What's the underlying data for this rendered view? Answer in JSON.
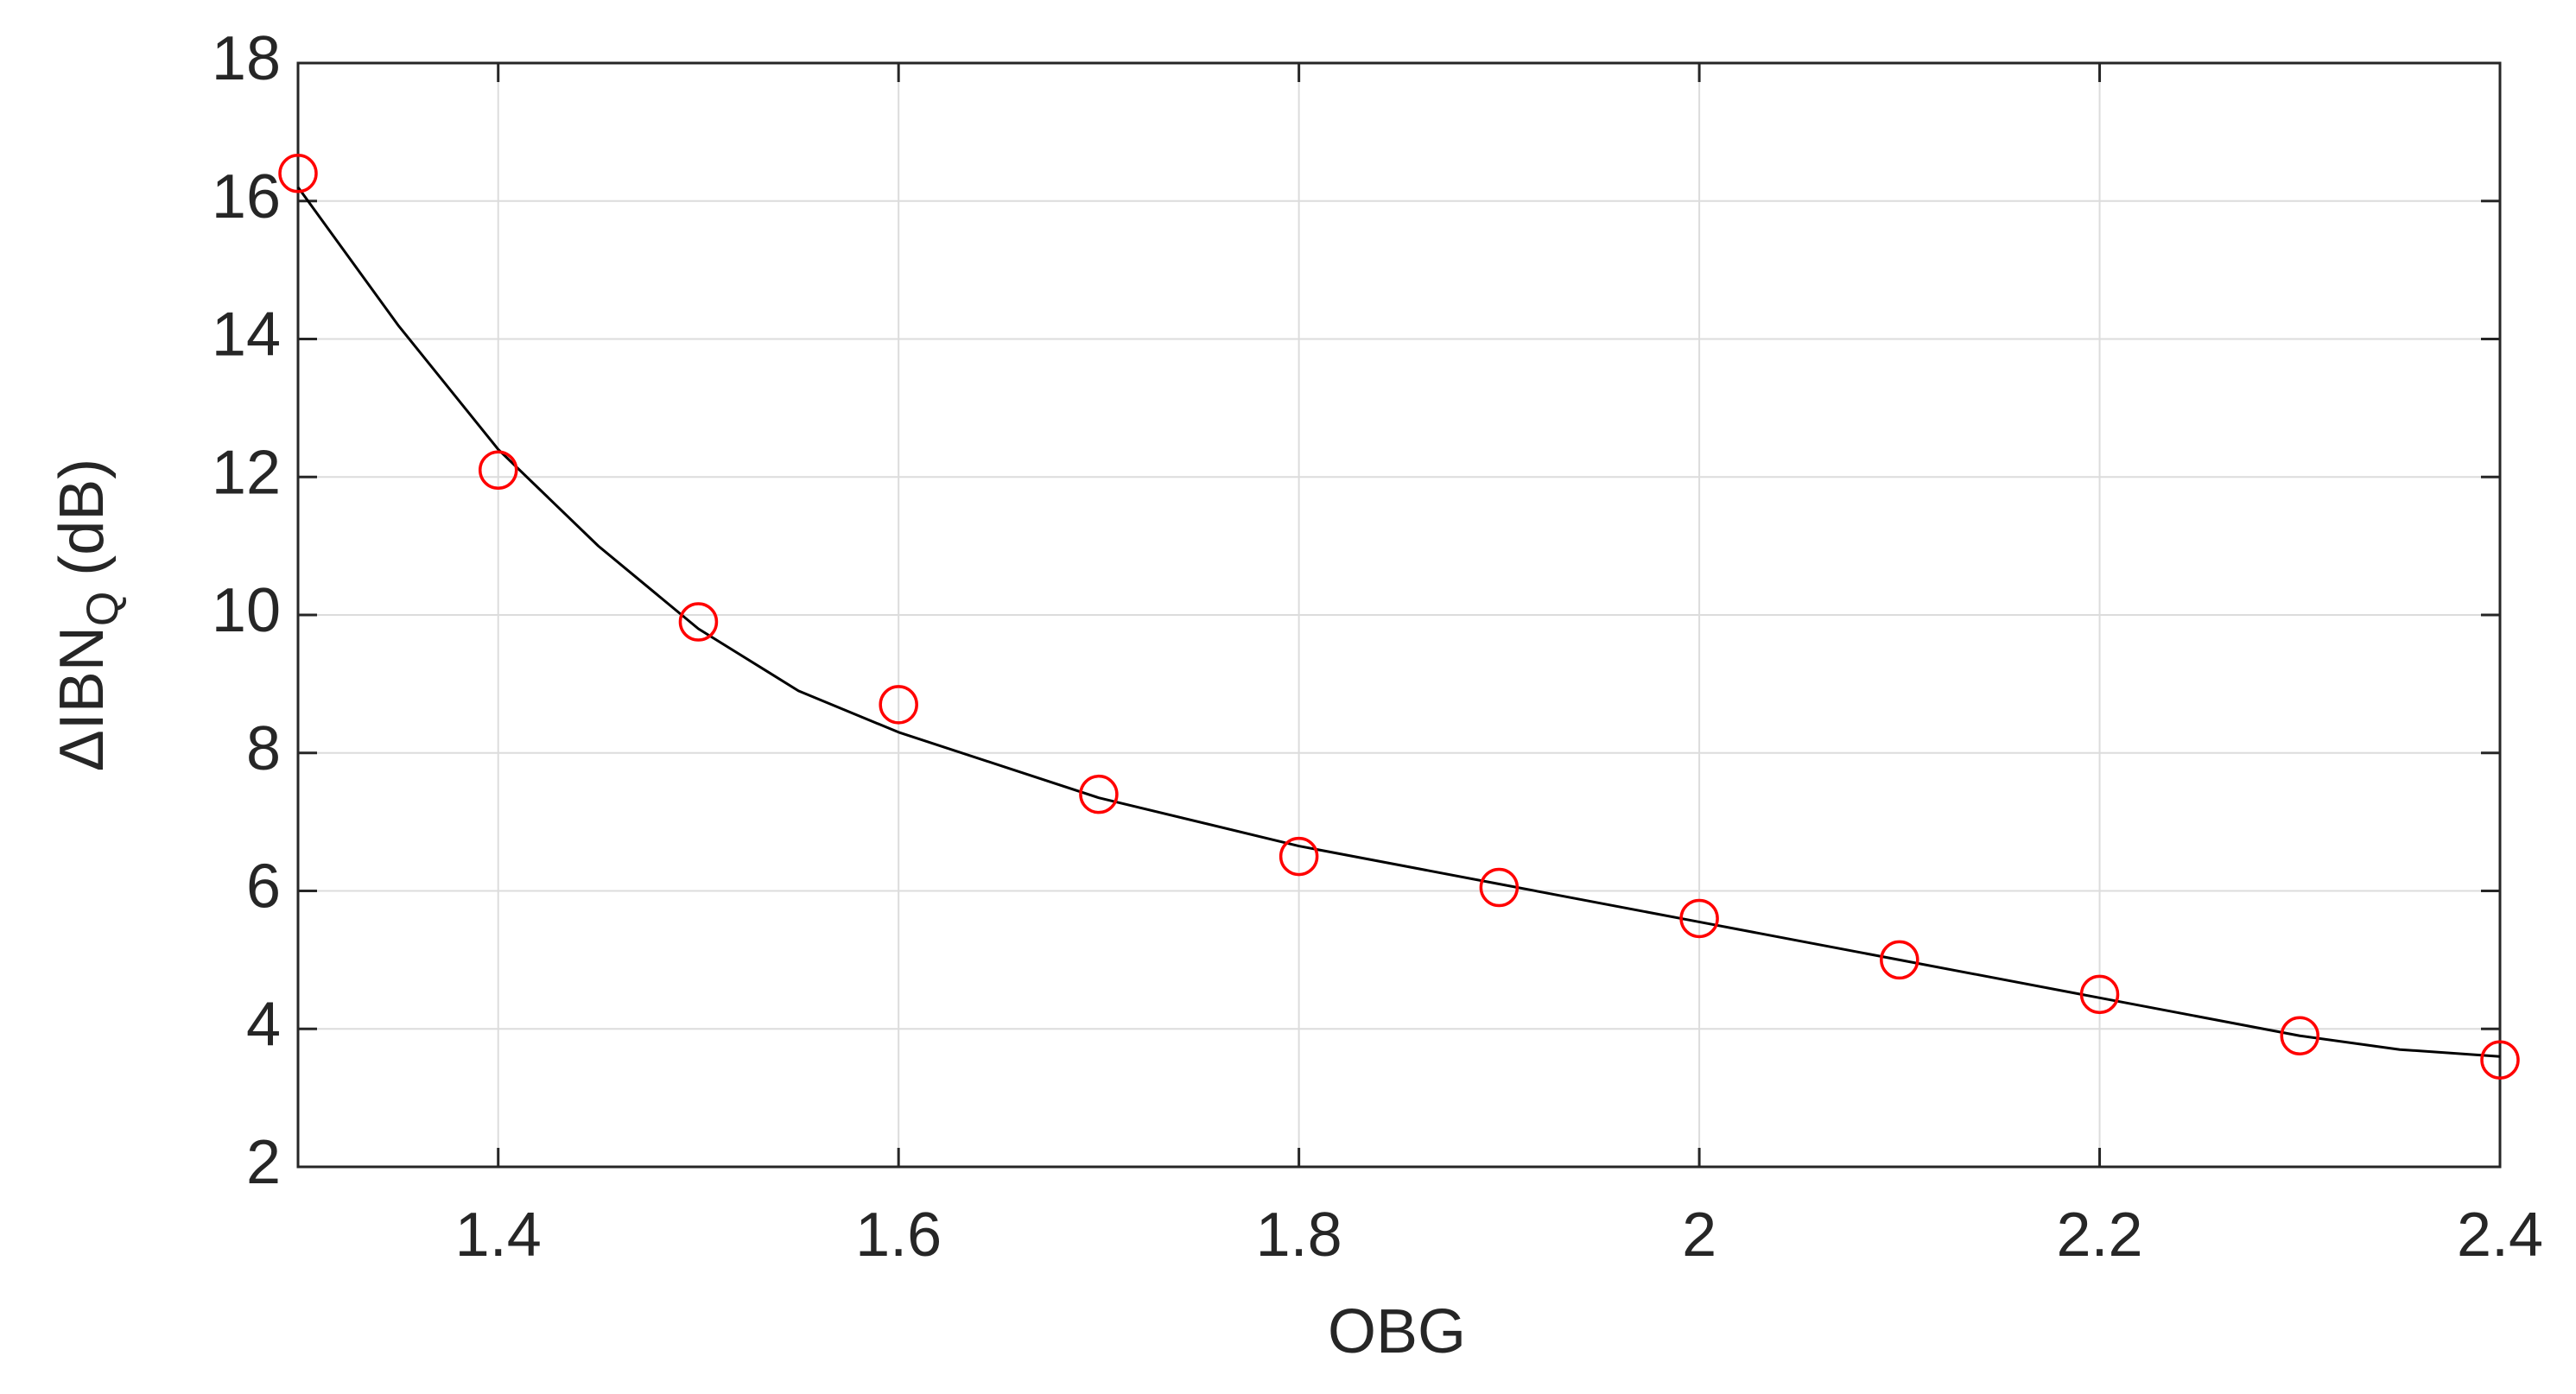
{
  "chart_data": {
    "type": "scatter",
    "x_label": "OBG",
    "y_label": {
      "main": "ΔIBN",
      "sub": "Q",
      "unit": "(dB)"
    },
    "xlim": [
      1.3,
      2.4
    ],
    "xticks": [
      1.4,
      1.6,
      1.8,
      2,
      2.2,
      2.4
    ],
    "ylim": [
      2,
      18
    ],
    "yticks": [
      2,
      4,
      6,
      8,
      10,
      12,
      14,
      16,
      18
    ],
    "grid": true,
    "series": [
      {
        "color": "#ff0000",
        "marker": "circle",
        "x": [
          1.3,
          1.4,
          1.5,
          1.6,
          1.7,
          1.8,
          1.9,
          2.0,
          2.1,
          2.2,
          2.3,
          2.4
        ],
        "values": [
          16.4,
          12.1,
          9.9,
          8.7,
          7.4,
          6.5,
          6.05,
          5.6,
          5.0,
          4.5,
          3.9,
          3.55
        ]
      },
      {
        "color": "#000000",
        "marker": "none",
        "x": [
          1.3,
          1.35,
          1.4,
          1.45,
          1.5,
          1.55,
          1.6,
          1.7,
          1.8,
          1.9,
          2.0,
          2.1,
          2.2,
          2.3,
          2.35,
          2.4
        ],
        "values": [
          16.2,
          14.2,
          12.4,
          11.0,
          9.8,
          8.9,
          8.3,
          7.35,
          6.65,
          6.1,
          5.55,
          5.0,
          4.45,
          3.9,
          3.7,
          3.6
        ]
      }
    ]
  }
}
